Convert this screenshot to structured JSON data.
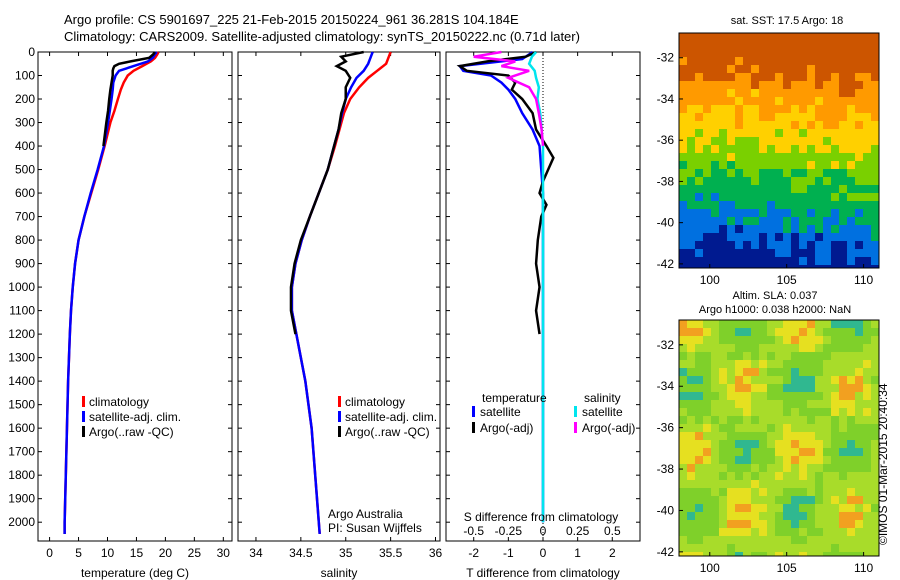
{
  "header": {
    "line1": "Argo profile: CS 5901697_225 21-Feb-2015 20150224_961 36.281S 104.184E",
    "line2": "Climatology: CARS2009. Satellite-adjusted climatology: synTS_20150222.nc (0.71d later)"
  },
  "footer": {
    "stamp": "©IMOS 01-Mar-2015 20:40:34"
  },
  "colors": {
    "climatology": "#ff0000",
    "satellite": "#0000ff",
    "argo": "#000000",
    "sat_salt": "#00e5ee",
    "argo_salt": "#ff00ff"
  },
  "depth_ticks": [
    0,
    100,
    200,
    300,
    400,
    500,
    600,
    700,
    800,
    900,
    1000,
    1100,
    1200,
    1300,
    1400,
    1500,
    1600,
    1700,
    1800,
    1900,
    2000
  ],
  "chart_data": [
    {
      "type": "line",
      "id": "temperature",
      "xlabel": "temperature (deg C)",
      "ylabel": "",
      "xlim": [
        -2,
        31.5
      ],
      "ylim": [
        2080,
        0
      ],
      "xticks": [
        0,
        5,
        10,
        15,
        20,
        25,
        30
      ],
      "xtick_labels": [
        "0",
        "5",
        "10",
        "15",
        "20",
        "25",
        "30"
      ],
      "legend": [
        "climatology",
        "satellite-adj. clim.",
        "Argo(..raw -QC)"
      ],
      "series": [
        {
          "name": "climatology",
          "color": "#ff0000",
          "y": [
            0,
            10,
            25,
            40,
            60,
            80,
            100,
            130,
            160,
            200,
            250,
            300,
            400,
            500,
            600,
            700,
            800,
            900,
            1000,
            1100,
            1200,
            1400,
            1600,
            1800,
            2000,
            2050
          ],
          "x": [
            18.8,
            18.6,
            18.2,
            17.5,
            16.0,
            14.5,
            13.5,
            12.8,
            12.3,
            11.8,
            11.2,
            10.5,
            9.5,
            8.4,
            7.2,
            6.0,
            5.0,
            4.4,
            4.0,
            3.7,
            3.5,
            3.2,
            3.0,
            2.8,
            2.6,
            2.6
          ]
        },
        {
          "name": "satellite-adj. clim.",
          "color": "#0000ff",
          "y": [
            0,
            10,
            25,
            40,
            60,
            80,
            100,
            130,
            160,
            200,
            250,
            300,
            400,
            500,
            600,
            700,
            800,
            900,
            1000,
            1100,
            1200,
            1400,
            1600,
            1800,
            2000,
            2050
          ],
          "x": [
            18.5,
            18.2,
            17.8,
            17.0,
            14.5,
            12.0,
            11.4,
            11.0,
            10.9,
            10.7,
            10.4,
            10.1,
            9.4,
            8.3,
            7.1,
            6.0,
            5.0,
            4.4,
            4.0,
            3.7,
            3.5,
            3.2,
            3.0,
            2.8,
            2.6,
            2.6
          ]
        },
        {
          "name": "Argo(..raw -QC)",
          "color": "#000000",
          "y": [
            0,
            10,
            25,
            40,
            50,
            60,
            70,
            80,
            100,
            130,
            160,
            200,
            250,
            300,
            400
          ],
          "x": [
            18.2,
            17.9,
            17.2,
            14.0,
            12.0,
            11.2,
            11.0,
            10.9,
            10.9,
            10.7,
            10.5,
            10.3,
            10.1,
            9.8,
            9.3
          ]
        }
      ]
    },
    {
      "type": "line",
      "id": "salinity",
      "xlabel": "salinity",
      "ylabel": "",
      "xlim": [
        33.8,
        36.05
      ],
      "ylim": [
        2080,
        0
      ],
      "xticks": [
        34,
        34.5,
        35,
        35.5,
        36
      ],
      "xtick_labels": [
        "34",
        "34.5",
        "35",
        "35.5",
        "36"
      ],
      "legend": [
        "climatology",
        "satellite-adj. clim.",
        "Argo(..raw -QC)"
      ],
      "annotation": [
        "Argo Australia",
        "PI: Susan Wijffels"
      ],
      "series": [
        {
          "name": "climatology",
          "color": "#ff0000",
          "y": [
            0,
            20,
            50,
            80,
            110,
            150,
            200,
            260,
            330,
            400,
            500,
            600,
            700,
            800,
            900,
            1000,
            1100,
            1200,
            1400,
            1600,
            1800,
            2000,
            2050
          ],
          "x": [
            35.5,
            35.48,
            35.45,
            35.35,
            35.25,
            35.15,
            35.05,
            34.98,
            34.93,
            34.88,
            34.8,
            34.7,
            34.6,
            34.51,
            34.44,
            34.4,
            34.4,
            34.45,
            34.55,
            34.62,
            34.66,
            34.7,
            34.71
          ]
        },
        {
          "name": "satellite-adj. clim.",
          "color": "#0000ff",
          "y": [
            0,
            20,
            50,
            80,
            110,
            150,
            200,
            260,
            330,
            400,
            500,
            600,
            700,
            800,
            900,
            1000,
            1100,
            1200,
            1400,
            1600,
            1800,
            2000,
            2050
          ],
          "x": [
            35.3,
            35.28,
            35.25,
            35.2,
            35.12,
            35.06,
            35.0,
            34.96,
            34.92,
            34.87,
            34.8,
            34.7,
            34.6,
            34.51,
            34.44,
            34.4,
            34.4,
            34.45,
            34.55,
            34.62,
            34.66,
            34.7,
            34.71
          ]
        },
        {
          "name": "Argo(..raw -QC)",
          "color": "#000000",
          "y": [
            0,
            20,
            40,
            60,
            80,
            110,
            150,
            200,
            260,
            330,
            400,
            500,
            600,
            700,
            800,
            900,
            1000,
            1100,
            1200
          ],
          "x": [
            35.2,
            34.95,
            35.0,
            34.9,
            35.0,
            35.05,
            35.0,
            35.0,
            34.95,
            34.92,
            34.87,
            34.8,
            34.7,
            34.6,
            34.5,
            34.43,
            34.39,
            34.39,
            34.44
          ]
        }
      ]
    },
    {
      "type": "line",
      "id": "difference",
      "xlabel": "T difference from climatology",
      "xlabel_top": "S difference from climatology",
      "ylabel": "",
      "xlim": [
        -2.8,
        2.8
      ],
      "ylim": [
        2080,
        0
      ],
      "xticks": [
        -2,
        -1,
        0,
        1,
        2
      ],
      "xtick_labels": [
        "-2",
        "-1",
        "0",
        "1",
        "2"
      ],
      "xticks_top": [
        -0.5,
        -0.25,
        0,
        0.25,
        0.5
      ],
      "xtick_top_labels": [
        "-0.5",
        "-0.25",
        "0",
        "0.25",
        "0.5"
      ],
      "xlim_top": [
        -0.7,
        0.7
      ],
      "legend_temperature": [
        "temperature",
        "satellite",
        "Argo(-adj)"
      ],
      "legend_salinity": [
        "salinity",
        "satellite",
        "Argo(-adj)"
      ],
      "series": [
        {
          "name": "satellite",
          "color": "#0000ff",
          "y": [
            0,
            10,
            30,
            60,
            80,
            100,
            130,
            160,
            200,
            260,
            330,
            400,
            500,
            600,
            800,
            1000,
            1200,
            1500,
            2000
          ],
          "x": [
            -0.3,
            -0.4,
            -0.6,
            -2.4,
            -2.3,
            -1.5,
            -1.2,
            -1.0,
            -0.8,
            -0.6,
            -0.3,
            -0.1,
            -0.05,
            0.0,
            0.0,
            0.0,
            0.0,
            0.0,
            0.0
          ]
        },
        {
          "name": "Argo(-adj)",
          "color": "#000000",
          "y": [
            0,
            20,
            40,
            60,
            80,
            100,
            130,
            160,
            200,
            260,
            330,
            400,
            450,
            500,
            550,
            600,
            650,
            700,
            800,
            900,
            1000,
            1100,
            1200
          ],
          "x": [
            -0.2,
            -0.5,
            -1.6,
            -2.4,
            -2.2,
            -1.0,
            -0.8,
            -0.9,
            -0.6,
            -0.3,
            -0.2,
            0.1,
            0.3,
            0.15,
            0.0,
            -0.1,
            0.1,
            -0.05,
            -0.15,
            -0.2,
            -0.1,
            -0.2,
            -0.1
          ]
        },
        {
          "name": "salinity satellite",
          "color": "#00e5ee",
          "axis": "top",
          "y": [
            0,
            20,
            50,
            80,
            110,
            150,
            200,
            260,
            330,
            400,
            500,
            800,
            1200,
            1600,
            2000
          ],
          "x": [
            -0.05,
            -0.08,
            -0.1,
            -0.06,
            -0.05,
            -0.03,
            -0.04,
            -0.02,
            -0.01,
            0.0,
            0.0,
            0.0,
            0.0,
            0.0,
            0.0
          ]
        },
        {
          "name": "salinity Argo(-adj)",
          "color": "#ff00ff",
          "axis": "top",
          "y": [
            0,
            20,
            40,
            60,
            80,
            110,
            150,
            200,
            260,
            330,
            400
          ],
          "x": [
            -0.3,
            -0.5,
            -0.2,
            -0.3,
            -0.1,
            -0.25,
            -0.1,
            -0.05,
            -0.03,
            -0.01,
            0.0
          ]
        }
      ]
    },
    {
      "type": "heatmap",
      "id": "sst-map",
      "title": "sat. SST: 17.5 Argo: 18",
      "xlim": [
        98,
        111
      ],
      "ylim": [
        -42.2,
        -30.8
      ],
      "xticks": [
        100,
        105,
        110
      ],
      "yticks": [
        -32,
        -34,
        -36,
        -38,
        -40,
        -42
      ],
      "colors": [
        "#cc5500",
        "#ff9a00",
        "#ffd000",
        "#7ad000",
        "#00b050",
        "#0070e0",
        "#001a90"
      ],
      "legend": "none"
    },
    {
      "type": "heatmap",
      "id": "sla-map",
      "title_lines": [
        "Altim. SLA: 0.037",
        "Argo h1000: 0.038 h2000: NaN"
      ],
      "xlim": [
        98,
        111
      ],
      "ylim": [
        -42.2,
        -30.8
      ],
      "xticks": [
        100,
        105,
        110
      ],
      "yticks": [
        -32,
        -34,
        -36,
        -38,
        -40,
        -42
      ],
      "colors": [
        "#7fd02a",
        "#a8dc2a",
        "#e6e020",
        "#f2a020",
        "#30b890"
      ],
      "legend": "none"
    }
  ]
}
